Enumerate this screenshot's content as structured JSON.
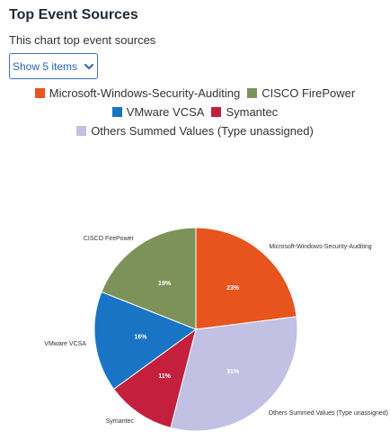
{
  "header": {
    "title": "Top Event Sources",
    "subtitle": "This chart top event sources"
  },
  "controls": {
    "show_items_label": "Show 5 items"
  },
  "icons": {
    "dropdown": "chevron-down-icon"
  },
  "chart_data": {
    "type": "pie",
    "legend_position": "top",
    "series": [
      {
        "name": "Microsoft-Windows-Security-Auditing",
        "value": 23,
        "label": "23%",
        "color": "#e8541e"
      },
      {
        "name": "Others Summed Values (Type unassigned)",
        "value": 31,
        "label": "31%",
        "color": "#c2c0e3"
      },
      {
        "name": "Symantec",
        "value": 11,
        "label": "11%",
        "color": "#c4203e"
      },
      {
        "name": "VMware VCSA",
        "value": 16,
        "label": "16%",
        "color": "#1a74c5"
      },
      {
        "name": "CISCO FirePower",
        "value": 19,
        "label": "19%",
        "color": "#7d9259"
      }
    ],
    "legend_rows": [
      [
        "Microsoft-Windows-Security-Auditing",
        "CISCO FirePower"
      ],
      [
        "VMware VCSA",
        "Symantec"
      ],
      [
        "Others Summed Values (Type unassigned)"
      ]
    ]
  }
}
